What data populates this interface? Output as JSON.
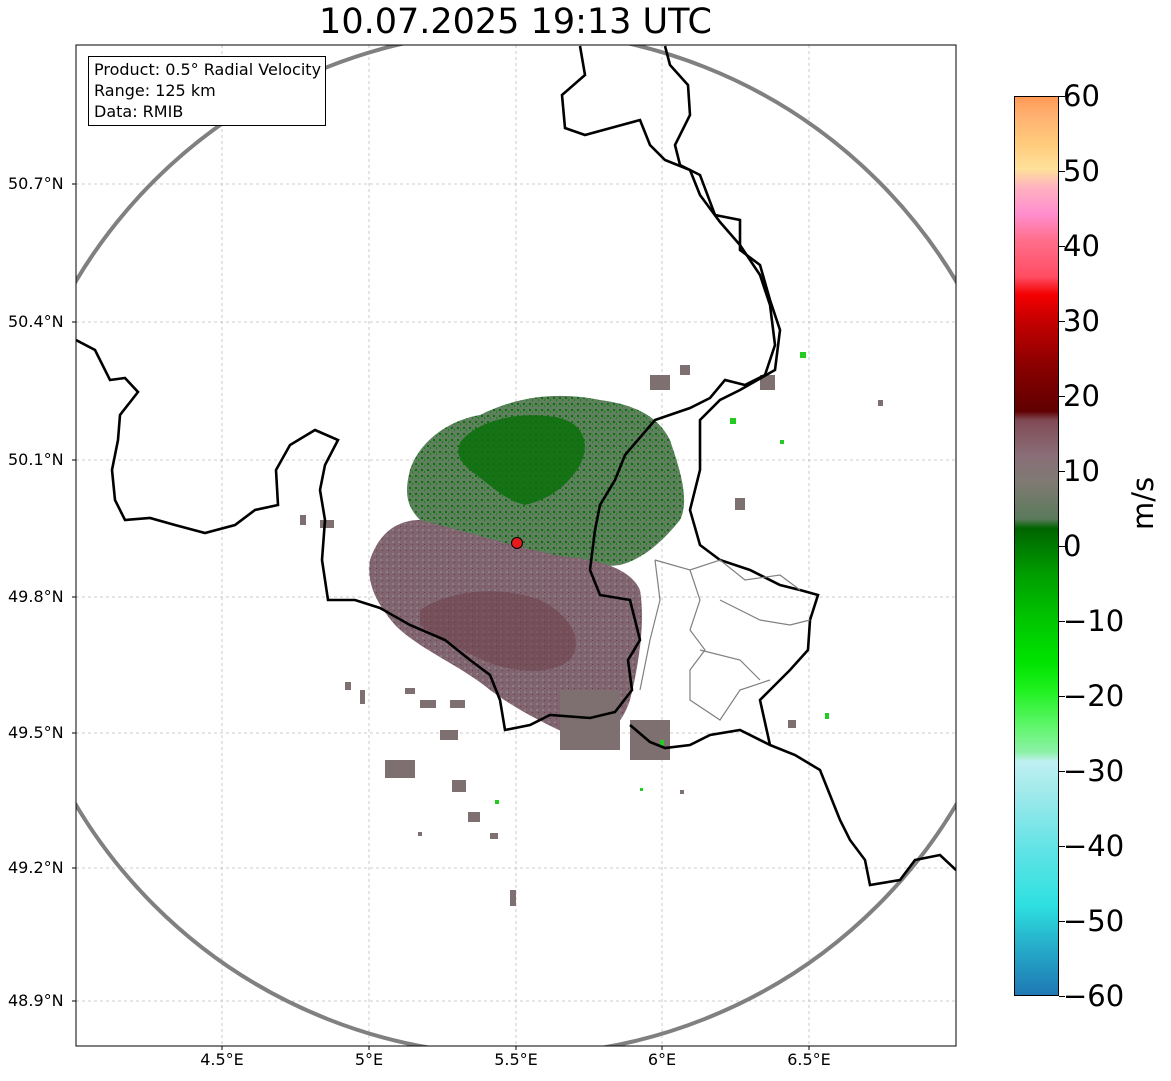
{
  "title": "10.07.2025 19:13 UTC",
  "info": {
    "product": "Product: 0.5° Radial Velocity",
    "range": "Range: 125 km",
    "data": "Data: RMIB"
  },
  "lat_labels": [
    "50.7°N",
    "50.4°N",
    "50.1°N",
    "49.8°N",
    "49.5°N",
    "49.2°N",
    "48.9°N"
  ],
  "lon_labels": [
    "4.5°E",
    "5°E",
    "5.5°E",
    "6°E",
    "6.5°E"
  ],
  "colorbar": {
    "unit": "m/s",
    "ticks": [
      "60",
      "50",
      "40",
      "30",
      "20",
      "10",
      "0",
      "−10",
      "−20",
      "−30",
      "−40",
      "−50",
      "−60"
    ],
    "min": -60,
    "max": 60
  },
  "colors": {
    "range_ring": "#808080",
    "radar_site": "#e41a1c",
    "border": "#000000",
    "approaching": "#1b6e1b",
    "receding": "#7d5a64"
  }
}
